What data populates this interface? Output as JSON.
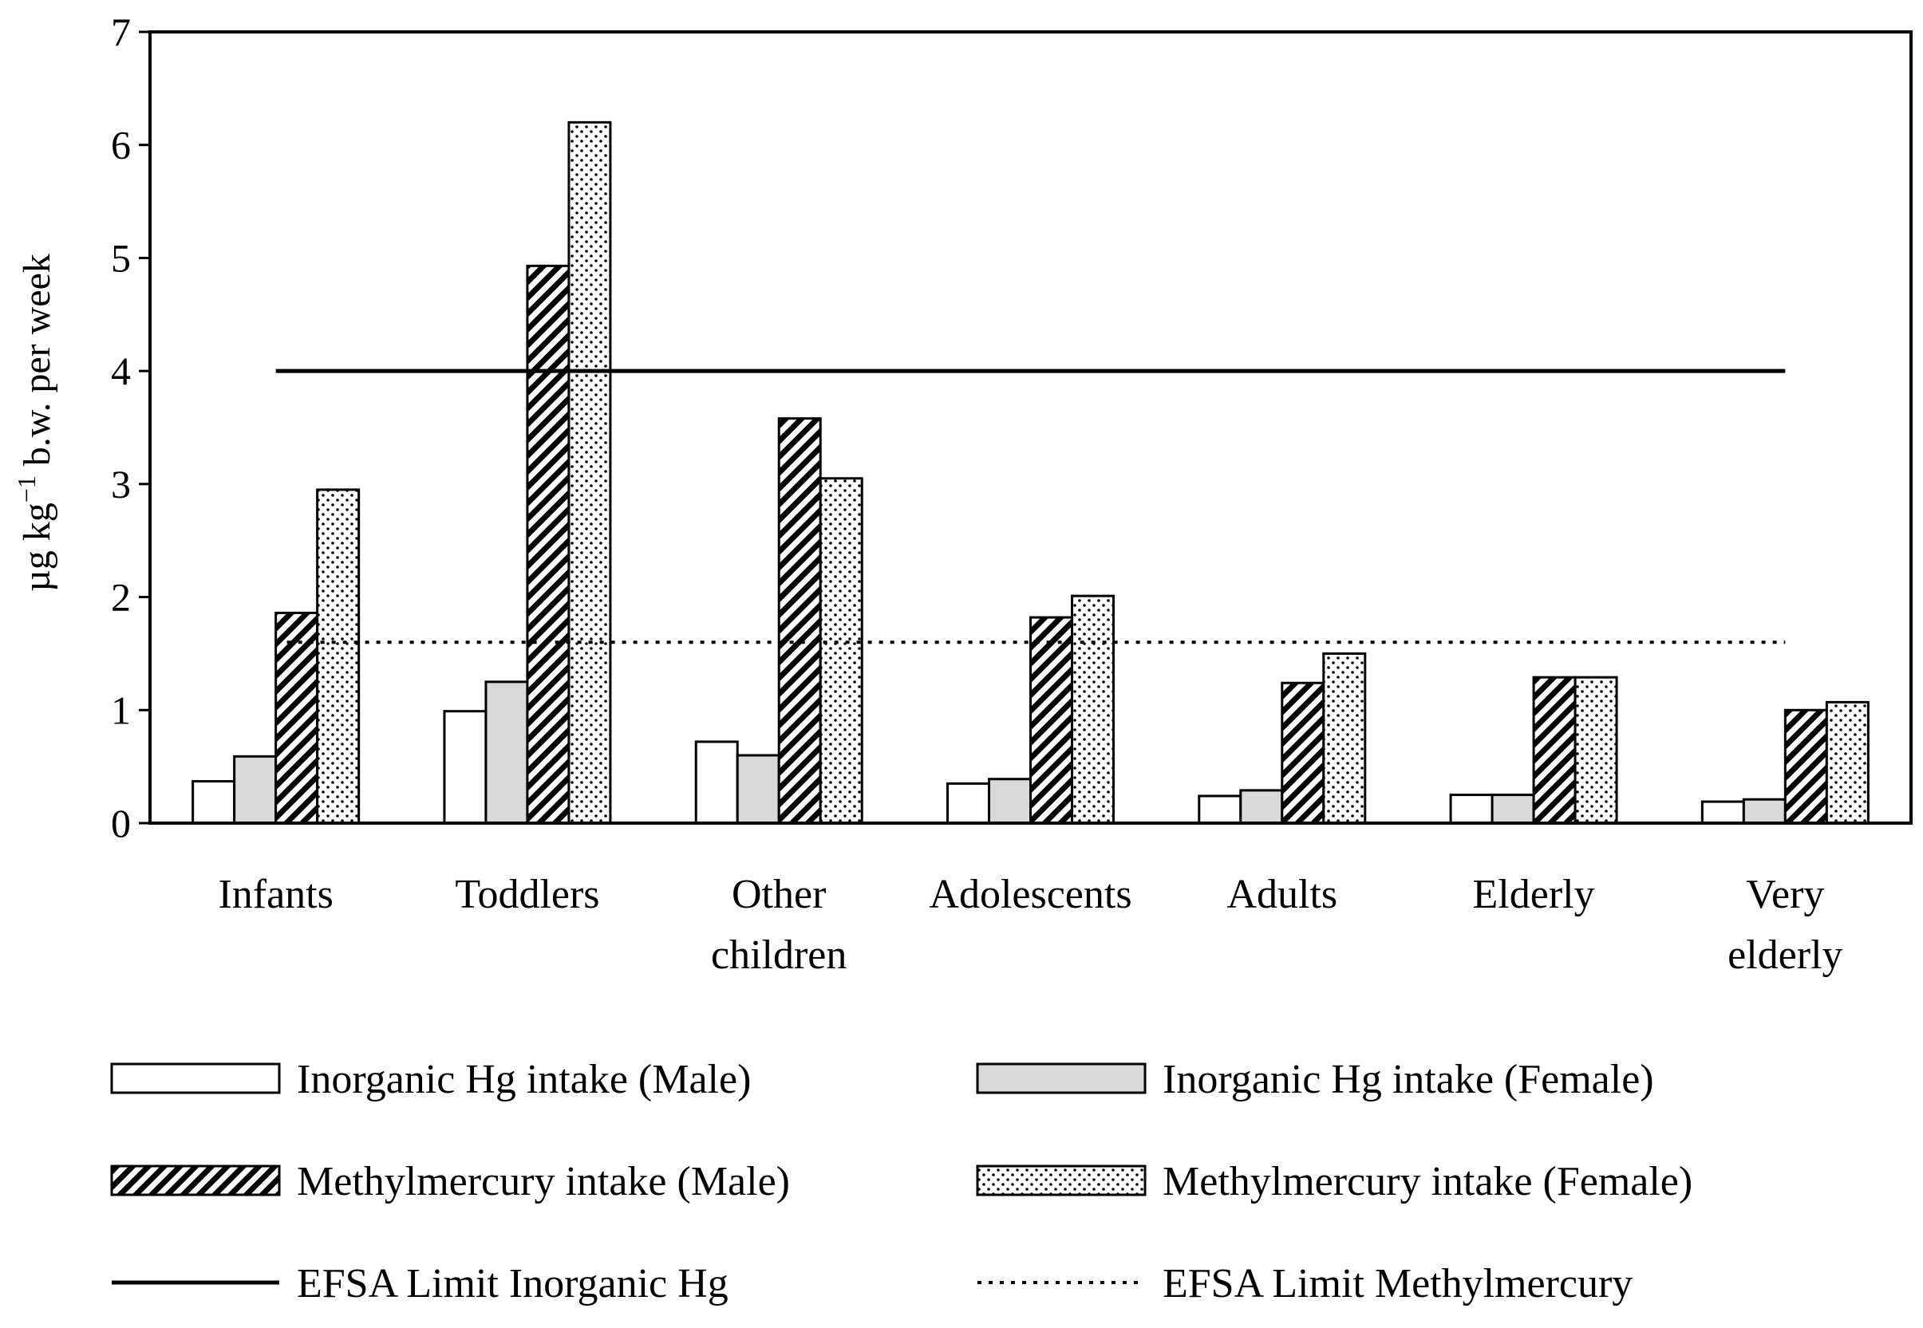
{
  "chart_data": {
    "type": "bar",
    "ylabel_parts": {
      "base": "µg kg",
      "sup": "−1",
      "rest": " b.w. per week"
    },
    "ylim": [
      0,
      7
    ],
    "yticks": [
      0,
      1,
      2,
      3,
      4,
      5,
      6,
      7
    ],
    "categories": [
      [
        "Infants"
      ],
      [
        "Toddlers"
      ],
      [
        "Other",
        "children"
      ],
      [
        "Adolescents"
      ],
      [
        "Adults"
      ],
      [
        "Elderly"
      ],
      [
        "Very",
        "elderly"
      ]
    ],
    "series": [
      {
        "name": "Inorganic Hg intake (Male)",
        "pattern": "white",
        "values": [
          0.37,
          0.99,
          0.72,
          0.35,
          0.24,
          0.25,
          0.19
        ]
      },
      {
        "name": "Inorganic Hg intake (Female)",
        "pattern": "gray",
        "values": [
          0.59,
          1.25,
          0.6,
          0.39,
          0.29,
          0.25,
          0.21
        ]
      },
      {
        "name": "Methylmercury intake (Male)",
        "pattern": "hatch",
        "values": [
          1.86,
          4.93,
          3.58,
          1.82,
          1.24,
          1.29,
          1.0
        ]
      },
      {
        "name": "Methylmercury intake (Female)",
        "pattern": "dots",
        "values": [
          2.95,
          6.2,
          3.05,
          2.01,
          1.5,
          1.29,
          1.07
        ]
      }
    ],
    "reference_lines": [
      {
        "name": "EFSA Limit Inorganic Hg",
        "value": 4.0,
        "style": "solid"
      },
      {
        "name": "EFSA Limit Methylmercury",
        "value": 1.6,
        "style": "dotted"
      }
    ],
    "legend_position": "bottom",
    "colors": {
      "gray_fill": "#d9d9d9",
      "stroke": "#000000",
      "background": "#ffffff"
    }
  }
}
